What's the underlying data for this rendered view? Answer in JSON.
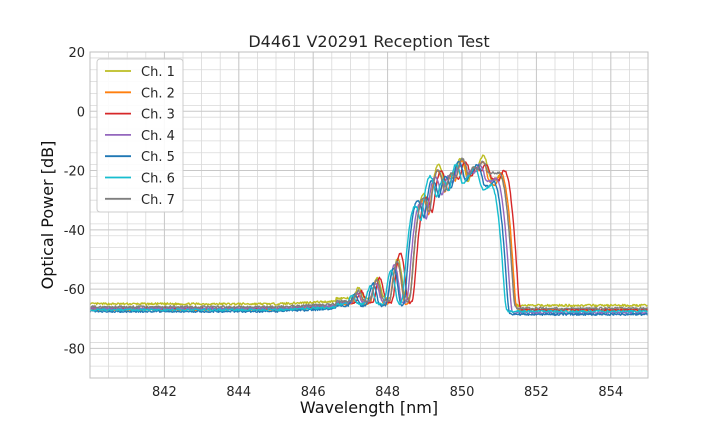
{
  "chart_data": {
    "type": "line",
    "title": "D4461 V20291 Reception Test",
    "xlabel": "Wavelength [nm]",
    "ylabel": "Optical Power [dB]",
    "xlim": [
      840,
      855
    ],
    "ylim": [
      -90,
      20
    ],
    "xticks": [
      842,
      844,
      846,
      848,
      850,
      852,
      854
    ],
    "yticks": [
      20,
      0,
      -20,
      -40,
      -60,
      -80
    ],
    "x_minor_step": 0.5,
    "y_minor_step": 4,
    "grid": true,
    "legend_position": "top-left",
    "series": [
      {
        "name": "Ch. 1",
        "color": "#bcbd22",
        "baseline": -65,
        "tail": -65.5,
        "offset": 0.02,
        "peaks": [
          [
            847.2,
            -62
          ],
          [
            847.7,
            -57
          ],
          [
            848.25,
            -50
          ],
          [
            848.95,
            -28
          ],
          [
            849.35,
            -18
          ],
          [
            849.7,
            -21
          ],
          [
            849.95,
            -16
          ],
          [
            850.3,
            -19
          ],
          [
            850.55,
            -15
          ],
          [
            850.8,
            -24
          ],
          [
            851.0,
            -22
          ]
        ]
      },
      {
        "name": "Ch. 2",
        "color": "#ff7f0e",
        "baseline": -67,
        "tail": -67,
        "offset": 0.0,
        "peaks": [
          [
            847.2,
            -64
          ],
          [
            847.7,
            -58
          ],
          [
            848.25,
            -51
          ],
          [
            848.95,
            -30
          ],
          [
            849.35,
            -20
          ],
          [
            849.7,
            -22
          ],
          [
            850.0,
            -17
          ],
          [
            850.3,
            -20
          ],
          [
            850.55,
            -17
          ],
          [
            850.8,
            -25
          ],
          [
            851.05,
            -21
          ]
        ]
      },
      {
        "name": "Ch. 3",
        "color": "#d62728",
        "baseline": -66.5,
        "tail": -67,
        "offset": 0.04,
        "peaks": [
          [
            847.25,
            -63
          ],
          [
            847.75,
            -57
          ],
          [
            848.3,
            -48
          ],
          [
            849.0,
            -29
          ],
          [
            849.4,
            -20
          ],
          [
            849.75,
            -21
          ],
          [
            850.05,
            -17
          ],
          [
            850.35,
            -19
          ],
          [
            850.6,
            -18
          ],
          [
            850.85,
            -23
          ],
          [
            851.1,
            -20
          ]
        ]
      },
      {
        "name": "Ch. 4",
        "color": "#9467bd",
        "baseline": -66.5,
        "tail": -68,
        "offset": -0.02,
        "peaks": [
          [
            847.2,
            -64
          ],
          [
            847.7,
            -59
          ],
          [
            848.2,
            -52
          ],
          [
            848.9,
            -31
          ],
          [
            849.3,
            -22
          ],
          [
            849.65,
            -22
          ],
          [
            849.95,
            -18
          ],
          [
            850.25,
            -20
          ],
          [
            850.5,
            -18
          ],
          [
            850.75,
            -24
          ],
          [
            850.95,
            -23
          ]
        ]
      },
      {
        "name": "Ch. 5",
        "color": "#1f77b4",
        "baseline": -67.5,
        "tail": -68.5,
        "offset": -0.04,
        "peaks": [
          [
            847.15,
            -64
          ],
          [
            847.65,
            -59
          ],
          [
            848.2,
            -53
          ],
          [
            848.85,
            -30
          ],
          [
            849.25,
            -23
          ],
          [
            849.6,
            -22
          ],
          [
            849.95,
            -17
          ],
          [
            850.25,
            -22
          ],
          [
            850.45,
            -18
          ],
          [
            850.7,
            -26
          ],
          [
            850.9,
            -24
          ]
        ]
      },
      {
        "name": "Ch. 6",
        "color": "#17becf",
        "baseline": -67,
        "tail": -67.5,
        "offset": -0.06,
        "peaks": [
          [
            847.1,
            -65
          ],
          [
            847.6,
            -60
          ],
          [
            848.15,
            -54
          ],
          [
            848.8,
            -32
          ],
          [
            849.2,
            -22
          ],
          [
            849.55,
            -23
          ],
          [
            849.9,
            -18
          ],
          [
            850.2,
            -23
          ],
          [
            850.4,
            -19
          ],
          [
            850.65,
            -27
          ],
          [
            850.85,
            -25
          ]
        ]
      },
      {
        "name": "Ch. 7",
        "color": "#7f7f7f",
        "baseline": -66,
        "tail": -66.5,
        "offset": 0.01,
        "peaks": [
          [
            847.2,
            -63
          ],
          [
            847.7,
            -58
          ],
          [
            848.25,
            -51
          ],
          [
            848.95,
            -29
          ],
          [
            849.35,
            -20
          ],
          [
            849.7,
            -21
          ],
          [
            850.0,
            -16
          ],
          [
            850.3,
            -19
          ],
          [
            850.55,
            -17
          ],
          [
            850.8,
            -21
          ],
          [
            851.0,
            -21
          ]
        ]
      }
    ]
  }
}
